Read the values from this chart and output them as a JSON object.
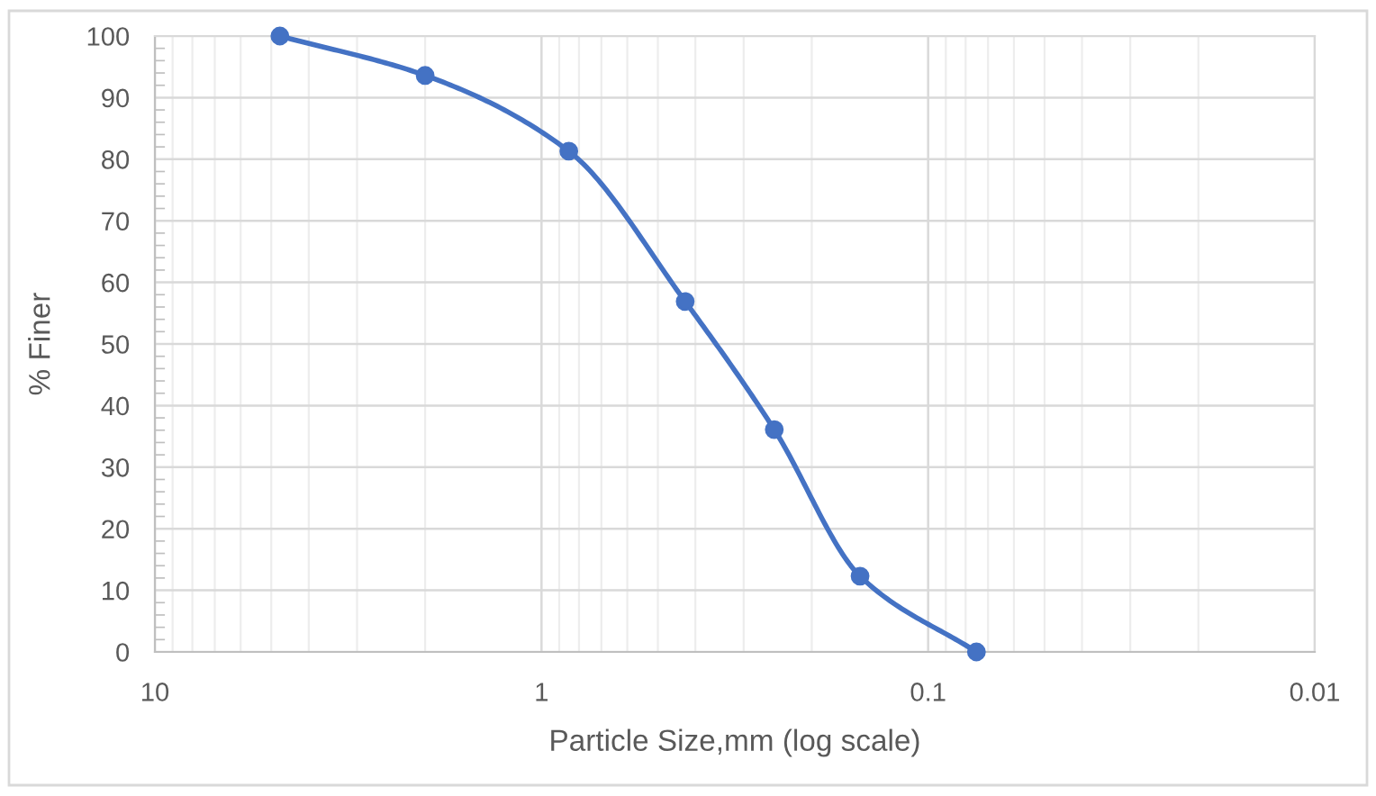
{
  "chart_data": {
    "type": "line",
    "xlabel": "Particle Size,mm (log scale)",
    "ylabel": "% Finer",
    "x": [
      4.75,
      2.0,
      0.85,
      0.425,
      0.25,
      0.15,
      0.075
    ],
    "series": [
      {
        "color": "#4472c4",
        "values": [
          100,
          93.6,
          81.3,
          56.9,
          36.1,
          12.3,
          0
        ]
      }
    ],
    "xlim": [
      10,
      0.01
    ],
    "xticks": [
      10,
      1,
      0.1,
      0.01
    ],
    "ylim": [
      0,
      100
    ],
    "yticks": [
      0,
      10,
      20,
      30,
      40,
      50,
      60,
      70,
      80,
      90,
      100
    ],
    "log": "x",
    "grid": true,
    "marker": "circle",
    "line_style": "solid"
  }
}
